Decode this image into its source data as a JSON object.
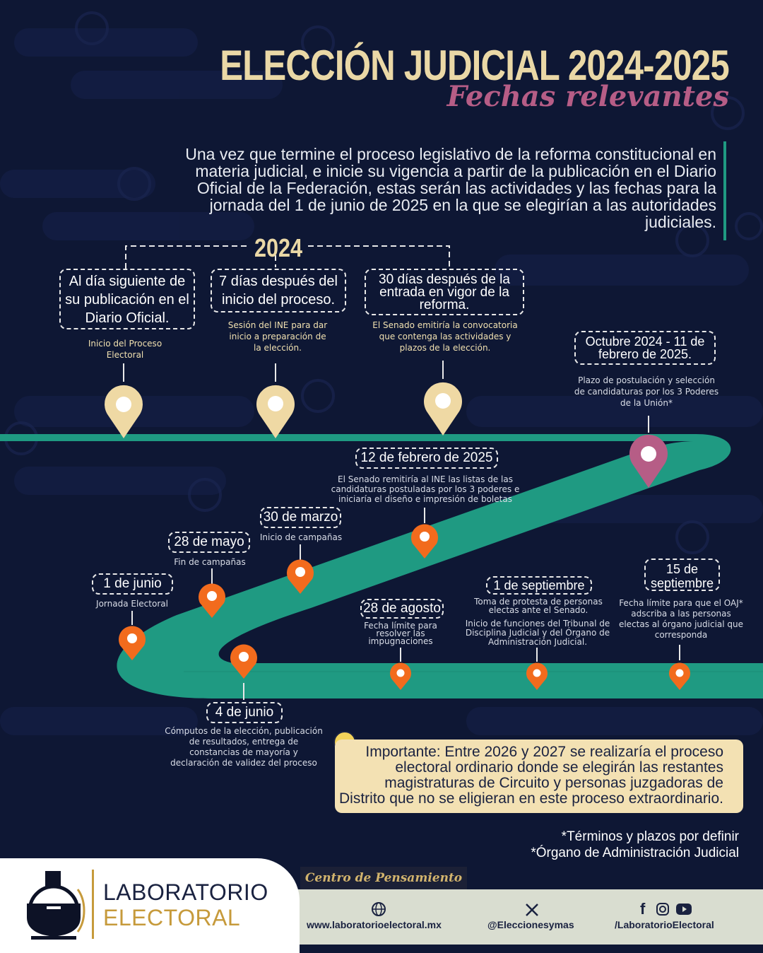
{
  "header": {
    "title": "ELECCIÓN JUDICIAL 2024-2025",
    "subtitle": "Fechas relevantes"
  },
  "intro_text": "Una vez que termine el proceso legislativo de la reforma constitucional en materia judicial, e inicie su vigencia a partir de la publicación en el Diario Oficial de la Federación, estas serán las actividades y las fechas para la jornada del 1 de junio de 2025 en la que se elegirían a las autoridades judiciales.",
  "timeline": {
    "year_label": "2024",
    "events": [
      {
        "date": "Al día siguiente de su publicación en el Diario Oficial.",
        "desc": "Inicio del Proceso Electoral"
      },
      {
        "date": "7 días después del inicio del proceso.",
        "desc": "Sesión del INE para dar inicio a preparación de la elección."
      },
      {
        "date": "30 días después de la entrada en vigor de la reforma.",
        "desc": "El Senado emitiría la convocatoria que contenga las actividades y plazos de la elección."
      },
      {
        "date": "Octubre 2024 - 11 de febrero de 2025.",
        "desc": "Plazo de postulación y selección de candidaturas por los 3 Poderes de la Unión*"
      },
      {
        "date": "12 de febrero de 2025",
        "desc": "El Senado remitiría al INE las listas de las candidaturas postuladas por los 3 poderes e iniciaría el diseño e impresión de boletas"
      },
      {
        "date": "30 de marzo",
        "desc": "Inicio de campañas"
      },
      {
        "date": "28 de mayo",
        "desc": "Fin de campañas"
      },
      {
        "date": "1 de junio",
        "desc": "Jornada Electoral"
      },
      {
        "date": "4 de junio",
        "desc": "Cómputos de la elección, publicación de resultados, entrega de constancias de mayoría y declaración de validez del proceso"
      },
      {
        "date": "28 de agosto",
        "desc": "Fecha límite para resolver las impugnaciones"
      },
      {
        "date": "1 de septiembre",
        "desc": "Toma de protesta de personas electas ante el Senado.",
        "desc2": "Inicio de funciones del Tribunal de Disciplina Judicial y del Órgano de Administración Judicial."
      },
      {
        "date": "15 de septiembre",
        "desc": "Fecha límite para que el OAJ* adscriba a las personas electas al órgano judicial que corresponda"
      }
    ]
  },
  "important": "Importante: Entre 2026 y 2027 se realizaría el proceso electoral ordinario donde se elegirán las restantes magistraturas de Circuito y personas juzgadoras de Distrito que no se eligieran en este proceso extraordinario.",
  "notes": [
    "*Términos y plazos por definir",
    "*Órgano de Administración Judicial"
  ],
  "footer": {
    "brand_line1": "LABORATORIO",
    "brand_line2": "ELECTORAL",
    "tagline": "Centro de Pensamiento",
    "website": "www.laboratorioelectoral.mx",
    "x_handle": "@Eleccionesymas",
    "social_handle": "/LaboratorioElectoral"
  },
  "colors": {
    "background": "#0e1734",
    "gold": "#ead8a6",
    "pink": "#b65d86",
    "teal": "#1f9a82",
    "orange": "#f26b1d"
  }
}
